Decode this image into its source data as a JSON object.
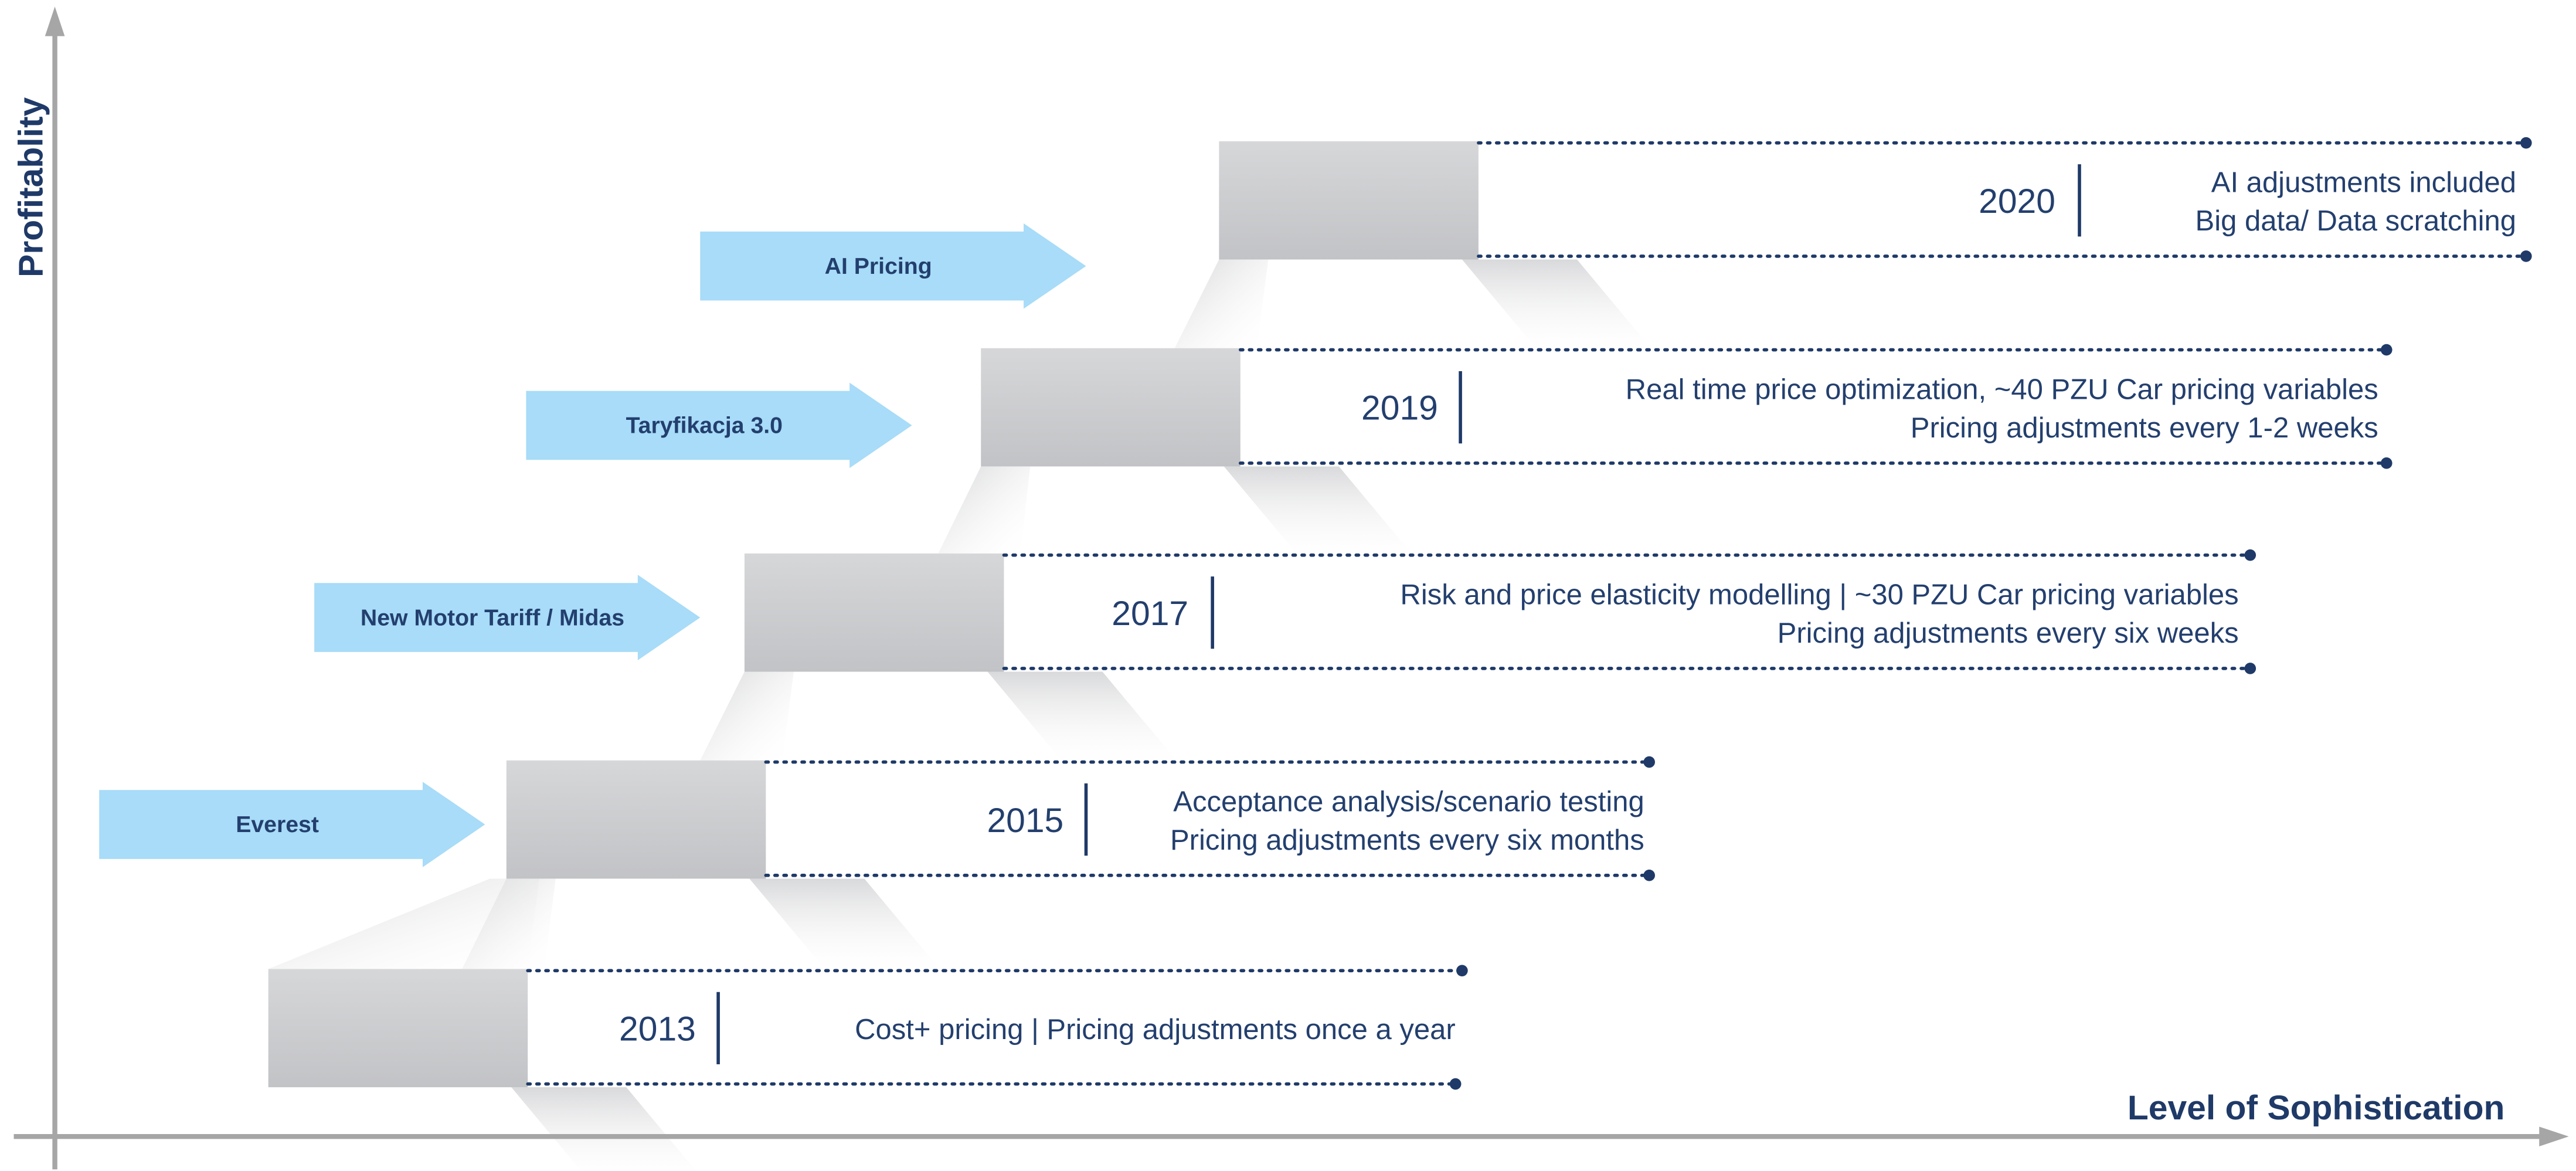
{
  "axes": {
    "y_label": "Profitablity",
    "x_label": "Level of Sophistication"
  },
  "steps": [
    {
      "year": "2013",
      "lines": [
        "Cost+ pricing | Pricing adjustments once a year"
      ]
    },
    {
      "year": "2015",
      "lines": [
        "Acceptance analysis/scenario testing",
        "Pricing adjustments every six months"
      ]
    },
    {
      "year": "2017",
      "lines": [
        "Risk and price elasticity modelling | ~30 PZU Car pricing variables",
        "Pricing adjustments every six weeks"
      ]
    },
    {
      "year": "2019",
      "lines": [
        "Real time price optimization, ~40 PZU Car pricing variables",
        "Pricing adjustments every  1-2  weeks"
      ]
    },
    {
      "year": "2020",
      "lines": [
        "AI adjustments included",
        "Big data/ Data scratching"
      ]
    }
  ],
  "arrows": [
    {
      "label": "Everest"
    },
    {
      "label": "New Motor Tariff / Midas"
    },
    {
      "label": "Taryfikacja 3.0"
    },
    {
      "label": "AI Pricing"
    }
  ]
}
